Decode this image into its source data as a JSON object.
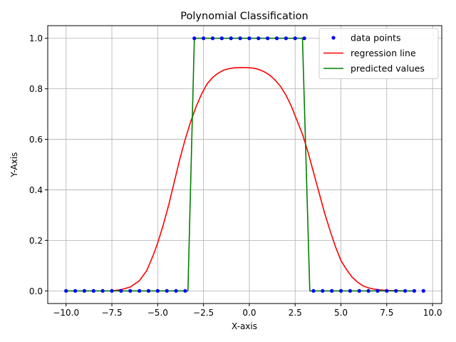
{
  "chart_data": {
    "type": "line",
    "title": "Polynomial Classification",
    "xlabel": "X-axis",
    "ylabel": "Y-Axis",
    "xlim": [
      -11.0,
      10.5
    ],
    "ylim": [
      -0.05,
      1.05
    ],
    "grid": true,
    "legend_position": "top-right",
    "x_ticks": [
      -10.0,
      -7.5,
      -5.0,
      -2.5,
      0.0,
      2.5,
      5.0,
      7.5,
      10.0
    ],
    "x_tick_labels": [
      "−10.0",
      "−7.5",
      "−5.0",
      "−2.5",
      "0.0",
      "2.5",
      "5.0",
      "7.5",
      "10.0"
    ],
    "y_ticks": [
      0.0,
      0.2,
      0.4,
      0.6,
      0.8,
      1.0
    ],
    "y_tick_labels": [
      "0.0",
      "0.2",
      "0.4",
      "0.6",
      "0.8",
      "1.0"
    ],
    "series": [
      {
        "name": "data points",
        "kind": "scatter",
        "color": "#0000ff",
        "x": [
          -10.0,
          -9.5,
          -9.0,
          -8.5,
          -8.0,
          -7.5,
          -7.0,
          -6.5,
          -6.0,
          -5.5,
          -5.0,
          -4.5,
          -4.0,
          -3.5,
          -3.0,
          -2.5,
          -2.0,
          -1.5,
          -1.0,
          -0.5,
          0.0,
          0.5,
          1.0,
          1.5,
          2.0,
          2.5,
          3.0,
          3.5,
          4.0,
          4.5,
          5.0,
          5.5,
          6.0,
          6.5,
          7.0,
          7.5,
          8.0,
          8.5,
          9.0,
          9.5
        ],
        "y": [
          0,
          0,
          0,
          0,
          0,
          0,
          0,
          0,
          0,
          0,
          0,
          0,
          0,
          0,
          1,
          1,
          1,
          1,
          1,
          1,
          1,
          1,
          1,
          1,
          1,
          1,
          1,
          0,
          0,
          0,
          0,
          0,
          0,
          0,
          0,
          0,
          0,
          0,
          0,
          0
        ]
      },
      {
        "name": "regression line",
        "kind": "line",
        "color": "#ff0000",
        "x": [
          -7.5,
          -7.0,
          -6.5,
          -6.0,
          -5.6,
          -5.25,
          -5.0,
          -4.7,
          -4.4,
          -4.1,
          -3.8,
          -3.5,
          -3.2,
          -2.9,
          -2.6,
          -2.3,
          -2.0,
          -1.7,
          -1.4,
          -1.1,
          -0.8,
          -0.5,
          -0.2,
          0.0,
          0.2,
          0.5,
          0.8,
          1.1,
          1.4,
          1.7,
          2.0,
          2.3,
          2.6,
          2.9,
          3.2,
          3.5,
          3.8,
          4.1,
          4.4,
          4.7,
          5.0,
          5.3,
          5.6,
          5.9,
          6.2,
          6.5,
          6.8,
          7.1,
          7.5,
          8.0,
          8.5,
          9.0
        ],
        "y": [
          0.0,
          0.005,
          0.015,
          0.04,
          0.08,
          0.14,
          0.19,
          0.26,
          0.34,
          0.43,
          0.52,
          0.6,
          0.67,
          0.73,
          0.78,
          0.82,
          0.845,
          0.862,
          0.874,
          0.88,
          0.883,
          0.884,
          0.884,
          0.883,
          0.882,
          0.877,
          0.868,
          0.855,
          0.835,
          0.81,
          0.775,
          0.73,
          0.675,
          0.62,
          0.55,
          0.47,
          0.39,
          0.31,
          0.24,
          0.175,
          0.12,
          0.085,
          0.055,
          0.035,
          0.02,
          0.012,
          0.007,
          0.004,
          0.002,
          0.001,
          0.0,
          0.0
        ]
      },
      {
        "name": "predicted values",
        "kind": "line",
        "color": "#008000",
        "x": [
          -10.0,
          -3.35,
          -3.0,
          2.9,
          3.3,
          9.0
        ],
        "y": [
          0,
          0,
          1,
          1,
          0,
          0
        ]
      }
    ]
  }
}
